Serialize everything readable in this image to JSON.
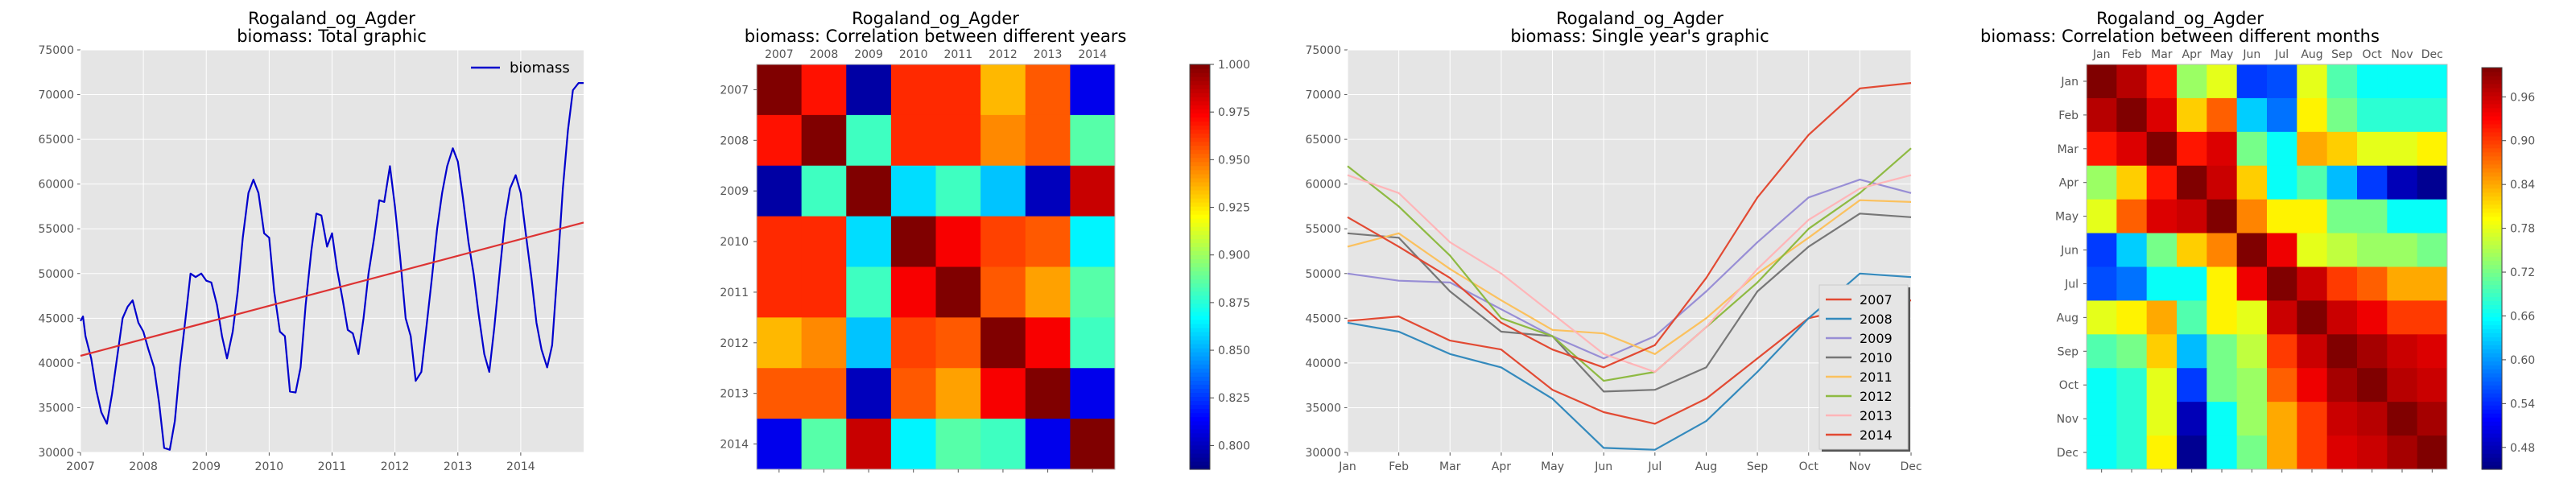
{
  "figure": {
    "region": "Rogaland_og_Agder",
    "subtitles": [
      "biomass: Total graphic",
      "biomass: Correlation between different years",
      "biomass: Single year's graphic",
      "biomass: Correlation between different months"
    ]
  },
  "chart_data": [
    {
      "type": "line",
      "title": "Rogaland_og_Agder",
      "subtitle": "biomass: Total graphic",
      "xlabel": "",
      "ylabel": "",
      "xlim": [
        2007.0,
        2015.0
      ],
      "ylim": [
        30000,
        75000
      ],
      "xticks": [
        2007,
        2008,
        2009,
        2010,
        2011,
        2012,
        2013,
        2014
      ],
      "yticks": [
        30000,
        35000,
        40000,
        45000,
        50000,
        55000,
        60000,
        65000,
        70000,
        75000
      ],
      "grid": true,
      "legend_position": "top-right",
      "series": [
        {
          "name": "biomass",
          "color": "#0000cc",
          "x": [
            2007.0,
            2007.04,
            2007.08,
            2007.17,
            2007.25,
            2007.33,
            2007.42,
            2007.5,
            2007.58,
            2007.67,
            2007.75,
            2007.83,
            2007.92,
            2008.0,
            2008.08,
            2008.17,
            2008.25,
            2008.33,
            2008.42,
            2008.5,
            2008.58,
            2008.67,
            2008.75,
            2008.83,
            2008.92,
            2009.0,
            2009.08,
            2009.17,
            2009.25,
            2009.33,
            2009.42,
            2009.5,
            2009.58,
            2009.67,
            2009.75,
            2009.83,
            2009.92,
            2010.0,
            2010.08,
            2010.17,
            2010.25,
            2010.33,
            2010.42,
            2010.5,
            2010.58,
            2010.67,
            2010.75,
            2010.83,
            2010.92,
            2011.0,
            2011.08,
            2011.17,
            2011.25,
            2011.33,
            2011.42,
            2011.5,
            2011.58,
            2011.67,
            2011.75,
            2011.83,
            2011.92,
            2012.0,
            2012.08,
            2012.17,
            2012.25,
            2012.33,
            2012.42,
            2012.5,
            2012.58,
            2012.67,
            2012.75,
            2012.83,
            2012.92,
            2013.0,
            2013.08,
            2013.17,
            2013.25,
            2013.33,
            2013.42,
            2013.5,
            2013.58,
            2013.67,
            2013.75,
            2013.83,
            2013.92,
            2014.0,
            2014.08,
            2014.17,
            2014.25,
            2014.33,
            2014.42,
            2014.5,
            2014.58,
            2014.67,
            2014.75,
            2014.83,
            2014.92,
            2015.0
          ],
          "values": [
            44700,
            45200,
            43000,
            40500,
            37000,
            34500,
            33200,
            36500,
            40500,
            45000,
            46300,
            47000,
            44500,
            43500,
            41500,
            39500,
            35500,
            30500,
            30300,
            33500,
            39500,
            45000,
            50000,
            49600,
            50000,
            49200,
            49000,
            46500,
            43000,
            40500,
            43500,
            48000,
            54000,
            59000,
            60500,
            59000,
            54500,
            54000,
            48000,
            43500,
            43000,
            36800,
            36700,
            39500,
            46500,
            52500,
            56700,
            56500,
            53000,
            54500,
            50500,
            47000,
            43700,
            43300,
            41000,
            45000,
            50000,
            54000,
            58200,
            58000,
            62000,
            57500,
            52000,
            45000,
            43000,
            38000,
            39000,
            44000,
            49000,
            55000,
            59000,
            62000,
            64000,
            62500,
            58500,
            53500,
            50000,
            45500,
            41000,
            39000,
            44000,
            50500,
            56000,
            59500,
            61000,
            59000,
            54500,
            49500,
            44500,
            41500,
            39500,
            42000,
            50000,
            59500,
            66000,
            70500,
            71300,
            71300
          ]
        },
        {
          "name": "",
          "color": "#dd3333",
          "x": [
            2007.0,
            2015.0
          ],
          "values": [
            40800,
            55700
          ]
        }
      ]
    },
    {
      "type": "heatmap",
      "title": "Rogaland_og_Agder",
      "subtitle": "biomass: Correlation between different years",
      "labels": [
        "2007",
        "2008",
        "2009",
        "2010",
        "2011",
        "2012",
        "2013",
        "2014"
      ],
      "colorbar": {
        "min": 0.7875,
        "max": 1.0,
        "ticks": [
          "0.800",
          "0.825",
          "0.850",
          "0.875",
          "0.900",
          "0.925",
          "0.950",
          "0.975",
          "1.000"
        ]
      },
      "values": [
        [
          1.0,
          0.97,
          0.795,
          0.965,
          0.965,
          0.935,
          0.955,
          0.81
        ],
        [
          0.97,
          1.0,
          0.88,
          0.965,
          0.965,
          0.945,
          0.955,
          0.885
        ],
        [
          0.795,
          0.88,
          1.0,
          0.86,
          0.88,
          0.855,
          0.8,
          0.985
        ],
        [
          0.965,
          0.965,
          0.86,
          1.0,
          0.975,
          0.96,
          0.955,
          0.865
        ],
        [
          0.965,
          0.965,
          0.88,
          0.975,
          1.0,
          0.955,
          0.94,
          0.885
        ],
        [
          0.935,
          0.945,
          0.855,
          0.96,
          0.955,
          1.0,
          0.975,
          0.88
        ],
        [
          0.955,
          0.955,
          0.8,
          0.955,
          0.94,
          0.975,
          1.0,
          0.81
        ],
        [
          0.81,
          0.885,
          0.985,
          0.865,
          0.885,
          0.88,
          0.81,
          1.0
        ]
      ]
    },
    {
      "type": "line",
      "title": "Rogaland_og_Agder",
      "subtitle": "biomass: Single year's graphic",
      "categories": [
        "Jan",
        "Feb",
        "Mar",
        "Apr",
        "May",
        "Jun",
        "Jul",
        "Aug",
        "Sep",
        "Oct",
        "Nov",
        "Dec"
      ],
      "ylim": [
        30000,
        75000
      ],
      "yticks": [
        30000,
        35000,
        40000,
        45000,
        50000,
        55000,
        60000,
        65000,
        70000,
        75000
      ],
      "grid": true,
      "legend_position": "bottom-right",
      "series": [
        {
          "name": "2007",
          "color": "#e24a33",
          "values": [
            44700,
            45200,
            42500,
            41500,
            37000,
            34500,
            33200,
            36000,
            40500,
            45000,
            46300,
            47000
          ]
        },
        {
          "name": "2008",
          "color": "#348abd",
          "values": [
            44500,
            43500,
            41000,
            39500,
            36000,
            30500,
            30300,
            33500,
            39000,
            45000,
            50000,
            49600
          ]
        },
        {
          "name": "2009",
          "color": "#988ed5",
          "values": [
            50000,
            49200,
            49000,
            46000,
            43000,
            40500,
            43000,
            48000,
            53500,
            58500,
            60500,
            59000
          ]
        },
        {
          "name": "2010",
          "color": "#777777",
          "values": [
            54500,
            54000,
            48000,
            43500,
            43000,
            36800,
            37000,
            39500,
            48000,
            53000,
            56700,
            56300
          ]
        },
        {
          "name": "2011",
          "color": "#fbc15e",
          "values": [
            53000,
            54500,
            50500,
            47000,
            43700,
            43300,
            41000,
            45000,
            50000,
            54000,
            58200,
            58000
          ]
        },
        {
          "name": "2012",
          "color": "#8eba42",
          "values": [
            62000,
            57500,
            52000,
            45000,
            43000,
            38000,
            39000,
            44000,
            49000,
            55000,
            59000,
            64000
          ]
        },
        {
          "name": "2013",
          "color": "#ffb5b8",
          "values": [
            61000,
            59000,
            53500,
            50000,
            45500,
            41000,
            39000,
            44000,
            50500,
            56000,
            59500,
            61000
          ]
        },
        {
          "name": "2014",
          "color": "#e24a33",
          "values": [
            56300,
            53000,
            49500,
            44500,
            41500,
            39500,
            42000,
            49500,
            58500,
            65500,
            70700,
            71300
          ]
        }
      ]
    },
    {
      "type": "heatmap",
      "title": "Rogaland_og_Agder",
      "subtitle": "biomass: Correlation between different months",
      "labels": [
        "Jan",
        "Feb",
        "Mar",
        "Apr",
        "May",
        "Jun",
        "Jul",
        "Aug",
        "Sep",
        "Oct",
        "Nov",
        "Dec"
      ],
      "colorbar": {
        "min": 0.45,
        "max": 1.0,
        "ticks": [
          "0.48",
          "0.54",
          "0.60",
          "0.66",
          "0.72",
          "0.78",
          "0.84",
          "0.90",
          "0.96"
        ]
      },
      "values": [
        [
          1.0,
          0.97,
          0.92,
          0.74,
          0.78,
          0.55,
          0.56,
          0.78,
          0.7,
          0.66,
          0.66,
          0.66
        ],
        [
          0.97,
          1.0,
          0.95,
          0.82,
          0.88,
          0.63,
          0.58,
          0.8,
          0.72,
          0.68,
          0.68,
          0.68
        ],
        [
          0.92,
          0.95,
          1.0,
          0.92,
          0.95,
          0.72,
          0.66,
          0.84,
          0.82,
          0.78,
          0.78,
          0.8
        ],
        [
          0.74,
          0.82,
          0.92,
          1.0,
          0.96,
          0.82,
          0.66,
          0.7,
          0.62,
          0.55,
          0.48,
          0.46
        ],
        [
          0.78,
          0.88,
          0.95,
          0.96,
          1.0,
          0.86,
          0.8,
          0.8,
          0.72,
          0.72,
          0.66,
          0.66
        ],
        [
          0.55,
          0.63,
          0.72,
          0.82,
          0.86,
          1.0,
          0.94,
          0.78,
          0.76,
          0.74,
          0.74,
          0.72
        ],
        [
          0.56,
          0.58,
          0.66,
          0.66,
          0.8,
          0.94,
          1.0,
          0.96,
          0.9,
          0.88,
          0.84,
          0.84
        ],
        [
          0.78,
          0.8,
          0.84,
          0.7,
          0.8,
          0.78,
          0.96,
          1.0,
          0.96,
          0.94,
          0.9,
          0.9
        ],
        [
          0.7,
          0.72,
          0.82,
          0.62,
          0.72,
          0.76,
          0.9,
          0.96,
          1.0,
          0.98,
          0.96,
          0.95
        ],
        [
          0.66,
          0.68,
          0.78,
          0.55,
          0.72,
          0.74,
          0.88,
          0.94,
          0.98,
          1.0,
          0.97,
          0.96
        ],
        [
          0.66,
          0.68,
          0.78,
          0.48,
          0.66,
          0.74,
          0.84,
          0.9,
          0.96,
          0.97,
          1.0,
          0.98
        ],
        [
          0.66,
          0.68,
          0.8,
          0.46,
          0.66,
          0.72,
          0.84,
          0.9,
          0.95,
          0.96,
          0.98,
          1.0
        ]
      ]
    }
  ]
}
